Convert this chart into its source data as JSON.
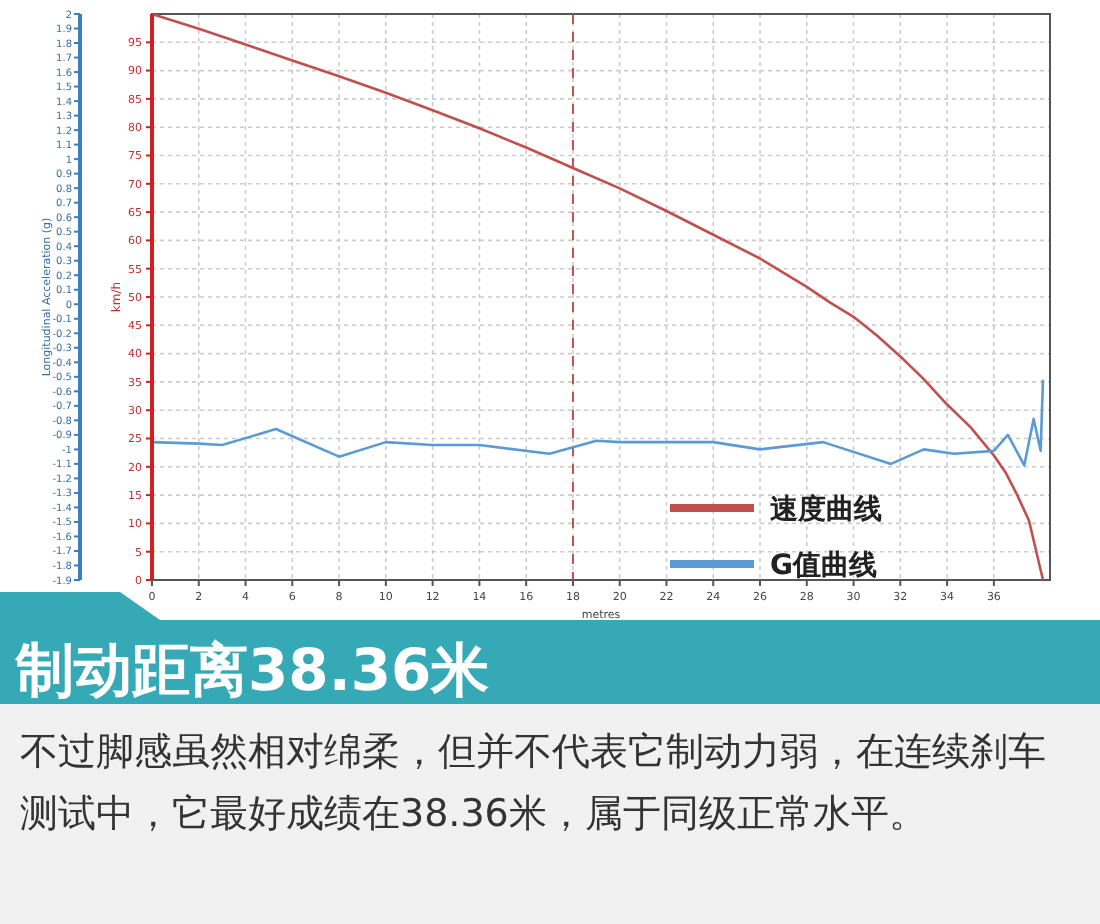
{
  "chart_data": {
    "type": "line",
    "title": "制动距离38.36米",
    "xlabel": "metres",
    "ylabel": "km/h",
    "y2label": "Longitudinal Acceleration (g)",
    "annotations": [
      "不过脚感虽然相对绵柔，但并不代表它制动力弱，在连续刹车测试中，它最好成绩在38.36米，属于同级正常水平。"
    ],
    "series": [
      {
        "name": "速度曲线",
        "color": "#c0504d",
        "x": [
          0,
          2,
          4,
          6,
          8,
          10,
          12,
          14,
          16,
          18,
          20,
          22,
          24,
          26,
          28,
          29,
          30,
          31,
          32,
          33,
          34,
          35,
          36,
          36.5,
          37,
          37.5,
          38.1
        ],
        "values": [
          100,
          97.4,
          94.6,
          91.8,
          89,
          86.1,
          83,
          79.8,
          76.4,
          72.8,
          69.2,
          65.2,
          61,
          56.8,
          51.8,
          49,
          46.5,
          43.2,
          39.5,
          35.5,
          31,
          27,
          22,
          19,
          15,
          10.5,
          0
        ]
      },
      {
        "name": "G值曲线",
        "color": "#5b9bd5",
        "axis": "y2",
        "x": [
          0,
          2,
          3,
          5.3,
          8,
          10,
          12,
          14,
          17,
          19,
          20,
          24,
          26,
          28.7,
          31.6,
          33,
          34.3,
          36,
          36.6,
          37.3,
          37.7,
          38,
          38.1
        ],
        "values": [
          -0.95,
          -0.96,
          -0.97,
          -0.86,
          -1.05,
          -0.95,
          -0.97,
          -0.97,
          -1.03,
          -0.94,
          -0.95,
          -0.95,
          -1,
          -0.95,
          -1.1,
          -1,
          -1.03,
          -1.01,
          -0.9,
          -1.11,
          -0.79,
          -1.01,
          -0.52
        ]
      }
    ],
    "xlim": [
      0,
      38.4
    ],
    "xticks": [
      0,
      2,
      4,
      6,
      8,
      10,
      12,
      14,
      16,
      18,
      20,
      22,
      24,
      26,
      28,
      30,
      32,
      34,
      36
    ],
    "ylim": [
      0,
      100
    ],
    "yticks": [
      0,
      5,
      10,
      15,
      20,
      25,
      30,
      35,
      40,
      45,
      50,
      55,
      60,
      65,
      70,
      75,
      80,
      85,
      90,
      95
    ],
    "y2lim": [
      -1.9,
      2
    ],
    "y2ticks": [
      -1.9,
      -1.8,
      -1.7,
      -1.6,
      -1.5,
      -1.4,
      -1.3,
      -1.2,
      -1.1,
      -1,
      -0.9,
      -0.8,
      -0.7,
      -0.6,
      -0.5,
      -0.4,
      -0.3,
      -0.2,
      -0.1,
      0,
      0.1,
      0.2,
      0.3,
      0.4,
      0.5,
      0.6,
      0.7,
      0.8,
      0.9,
      1,
      1.1,
      1.2,
      1.3,
      1.4,
      1.5,
      1.6,
      1.7,
      1.8,
      1.9,
      2
    ],
    "ref_lines": [
      {
        "axis": "x",
        "value": 18,
        "color": "#c0504d",
        "line_style": "dashed"
      }
    ],
    "grid": true,
    "legend": "bottom right",
    "line_style": "solid",
    "marker": "none"
  }
}
